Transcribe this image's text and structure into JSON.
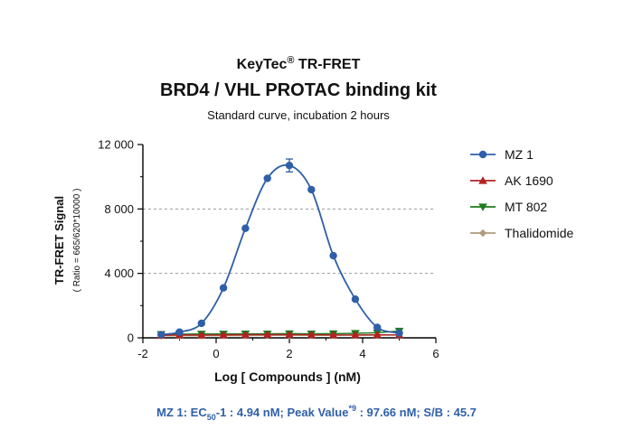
{
  "chart_data": {
    "type": "line",
    "title_brand": "KeyTec",
    "title_mark": "®",
    "title_suffix": " TR-FRET",
    "title": "BRD4 / VHL PROTAC binding kit",
    "subtitle": "Standard curve, incubation 2 hours",
    "xlabel": "Log [ Compounds ] (nM)",
    "ylabel": "TR-FRET Signal",
    "ylabel_sub": "( Ratio = 665/620*10000 )",
    "xlim": [
      -2,
      6
    ],
    "ylim": [
      0,
      12000
    ],
    "x_ticks": [
      -2,
      0,
      2,
      4,
      6
    ],
    "x_tick_labels": [
      "-2",
      "0",
      "2",
      "4",
      "6"
    ],
    "y_ticks": [
      0,
      4000,
      8000,
      12000
    ],
    "y_tick_labels": [
      "0",
      "4 000",
      "8 000",
      "12 000"
    ],
    "gridlines_y": [
      4000,
      8000
    ],
    "legend_position": "right",
    "series": [
      {
        "name": "MZ 1",
        "color": "#2f5fa8",
        "marker": "circle",
        "x": [
          -1.5,
          -1.0,
          -0.4,
          0.2,
          0.8,
          1.4,
          2.0,
          2.6,
          3.2,
          3.8,
          4.4,
          5.0
        ],
        "y": [
          200,
          350,
          900,
          3100,
          6800,
          9900,
          10700,
          9200,
          5100,
          2400,
          650,
          300
        ],
        "err": [
          0,
          0,
          0,
          0,
          0,
          0,
          400,
          0,
          0,
          0,
          0,
          0
        ],
        "curve": true
      },
      {
        "name": "AK 1690",
        "color": "#b22222",
        "marker": "triangle-up",
        "x": [
          -1.5,
          -1.0,
          -0.4,
          0.2,
          0.8,
          1.4,
          2.0,
          2.6,
          3.2,
          3.8,
          4.4,
          5.0
        ],
        "y": [
          150,
          180,
          170,
          180,
          190,
          200,
          200,
          190,
          180,
          180,
          190,
          180
        ]
      },
      {
        "name": "MT 802",
        "color": "#1e7a1e",
        "marker": "triangle-down",
        "x": [
          -1.5,
          -1.0,
          -0.4,
          0.2,
          0.8,
          1.4,
          2.0,
          2.6,
          3.2,
          3.8,
          4.4,
          5.0
        ],
        "y": [
          220,
          230,
          240,
          240,
          250,
          250,
          260,
          250,
          260,
          280,
          320,
          420
        ],
        "err": [
          0,
          0,
          0,
          0,
          0,
          0,
          0,
          0,
          0,
          0,
          0,
          150
        ]
      },
      {
        "name": "Thalidomide",
        "color": "#b09a7c",
        "marker": "diamond",
        "x": [
          -1.5,
          -1.0,
          -0.4,
          0.2,
          0.8,
          1.4,
          2.0,
          2.6,
          3.2,
          3.8,
          4.4,
          5.0
        ],
        "y": [
          120,
          130,
          130,
          140,
          140,
          150,
          150,
          150,
          150,
          160,
          160,
          170
        ]
      }
    ],
    "footer": {
      "prefix": "MZ 1: EC",
      "sub": "50",
      "mid1": "-1 : 4.94 nM;  Peak Value",
      "sup": "*9",
      "mid2": " : 97.66 nM;  S/B : 45.7",
      "color": "#2f5fa8"
    }
  }
}
